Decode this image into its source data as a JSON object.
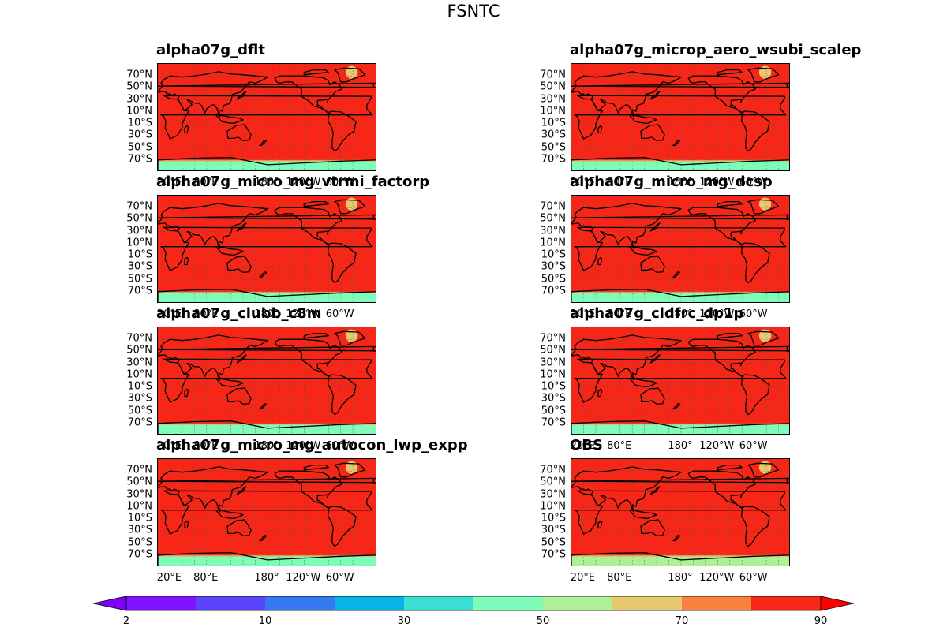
{
  "figure_title": "FSNTC",
  "colors": {
    "ocean": "#f82616",
    "land": "#f82616",
    "antarctic_band": "#7dfcba",
    "arctic_ice": "#e8c96e",
    "coast": "#000000",
    "grid": "#555555"
  },
  "chart_data": {
    "type": "heatmap",
    "variable": "FSNTC",
    "lat_ticks": [
      "70°N",
      "50°N",
      "30°N",
      "10°N",
      "10°S",
      "30°S",
      "50°S",
      "70°S"
    ],
    "lat_values": [
      70,
      50,
      30,
      10,
      -10,
      -30,
      -50,
      -70
    ],
    "lon_ticks": [
      "20°E",
      "80°E",
      "180°",
      "120°W",
      "60°W"
    ],
    "lon_values": [
      20,
      80,
      180,
      240,
      300
    ],
    "lon_range": [
      0,
      360
    ],
    "lat_range": [
      -90,
      90
    ],
    "panels": [
      {
        "name": "alpha07g_dflt",
        "dominant_range": "80-90",
        "antarctic_range": "40-50"
      },
      {
        "name": "alpha07g_microp_aero_wsubi_scalep",
        "dominant_range": "80-90",
        "antarctic_range": "40-50"
      },
      {
        "name": "alpha07g_micro_mg_vtrmi_factorp",
        "dominant_range": "80-90",
        "antarctic_range": "40-50"
      },
      {
        "name": "alpha07g_micro_mg_dcsp",
        "dominant_range": "80-90",
        "antarctic_range": "40-50"
      },
      {
        "name": "alpha07g_clubb_c8m",
        "dominant_range": "80-90",
        "antarctic_range": "40-50"
      },
      {
        "name": "alpha07g_cldfrc_dp1p",
        "dominant_range": "80-90",
        "antarctic_range": "40-50"
      },
      {
        "name": "alpha07g_micro_mg_autocon_lwp_expp",
        "dominant_range": "80-90",
        "antarctic_range": "40-50"
      },
      {
        "name": "OBS",
        "dominant_range": "80-90",
        "antarctic_range": "50-60"
      }
    ],
    "colorbar": {
      "levels": [
        2,
        5,
        10,
        20,
        30,
        40,
        50,
        60,
        70,
        80,
        90
      ],
      "tick_labels": [
        "2",
        "10",
        "30",
        "50",
        "70",
        "90"
      ],
      "tick_values": [
        2,
        10,
        30,
        50,
        70,
        90
      ],
      "colors": [
        "#7f12ff",
        "#5a45fb",
        "#3578f0",
        "#08b4e6",
        "#3bdfd2",
        "#7dfcba",
        "#afef96",
        "#e8c96e",
        "#f8813e",
        "#f82616"
      ],
      "extend": "both",
      "under_color": "#8000ff",
      "over_color": "#ff0000"
    }
  }
}
